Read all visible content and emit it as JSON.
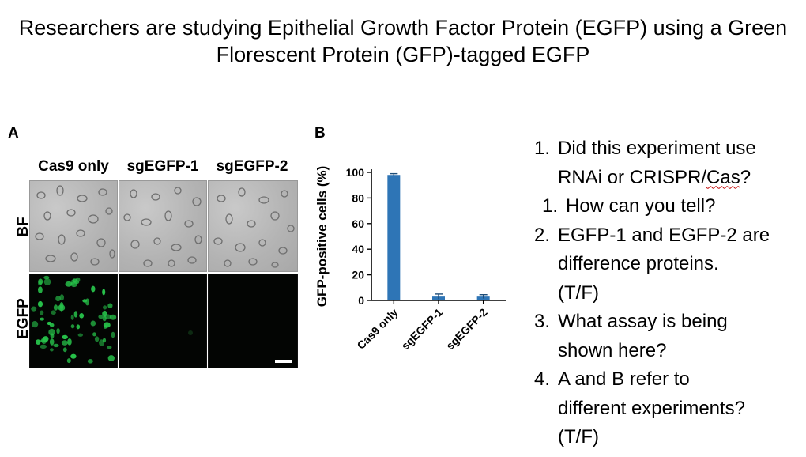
{
  "title": "Researchers are studying Epithelial Growth Factor Protein (EGFP) using a Green Florescent Protein (GFP)-tagged EGFP",
  "panel_a": {
    "letter": "A",
    "columns": [
      "Cas9 only",
      "sgEGFP-1",
      "sgEGFP-2"
    ],
    "rows": [
      "BF",
      "EGFP"
    ]
  },
  "panel_b": {
    "letter": "B"
  },
  "chart_data": {
    "type": "bar",
    "categories": [
      "Cas9 only",
      "sgEGFP-1",
      "sgEGFP-2"
    ],
    "values": [
      98,
      3,
      3
    ],
    "errors": [
      1,
      2,
      1.5
    ],
    "ylabel": "GFP-positive cells (%)",
    "xlabel": "",
    "ylim": [
      0,
      100
    ],
    "yticks": [
      0,
      20,
      40,
      60,
      80,
      100
    ],
    "bar_color": "#2e75b6",
    "grid": false
  },
  "questions": [
    {
      "num": "1.",
      "lines": [
        "Did this experiment use",
        "RNAi or CRISPR/",
        "Cas",
        "?"
      ]
    },
    {
      "num": "1.",
      "text": "How can you tell?"
    },
    {
      "num": "2.",
      "lines": [
        "EGFP-1 and EGFP-2 are",
        "difference proteins.",
        "(T/F)"
      ]
    },
    {
      "num": "3.",
      "lines": [
        "What assay is being",
        "shown here?"
      ]
    },
    {
      "num": "4.",
      "lines": [
        "A and B refer to",
        "different experiments?",
        "(T/F)"
      ]
    }
  ],
  "colors": {
    "egfp_green": "#27c24a",
    "bar_blue": "#2e75b6",
    "spellcheck_red": "#c00000"
  }
}
